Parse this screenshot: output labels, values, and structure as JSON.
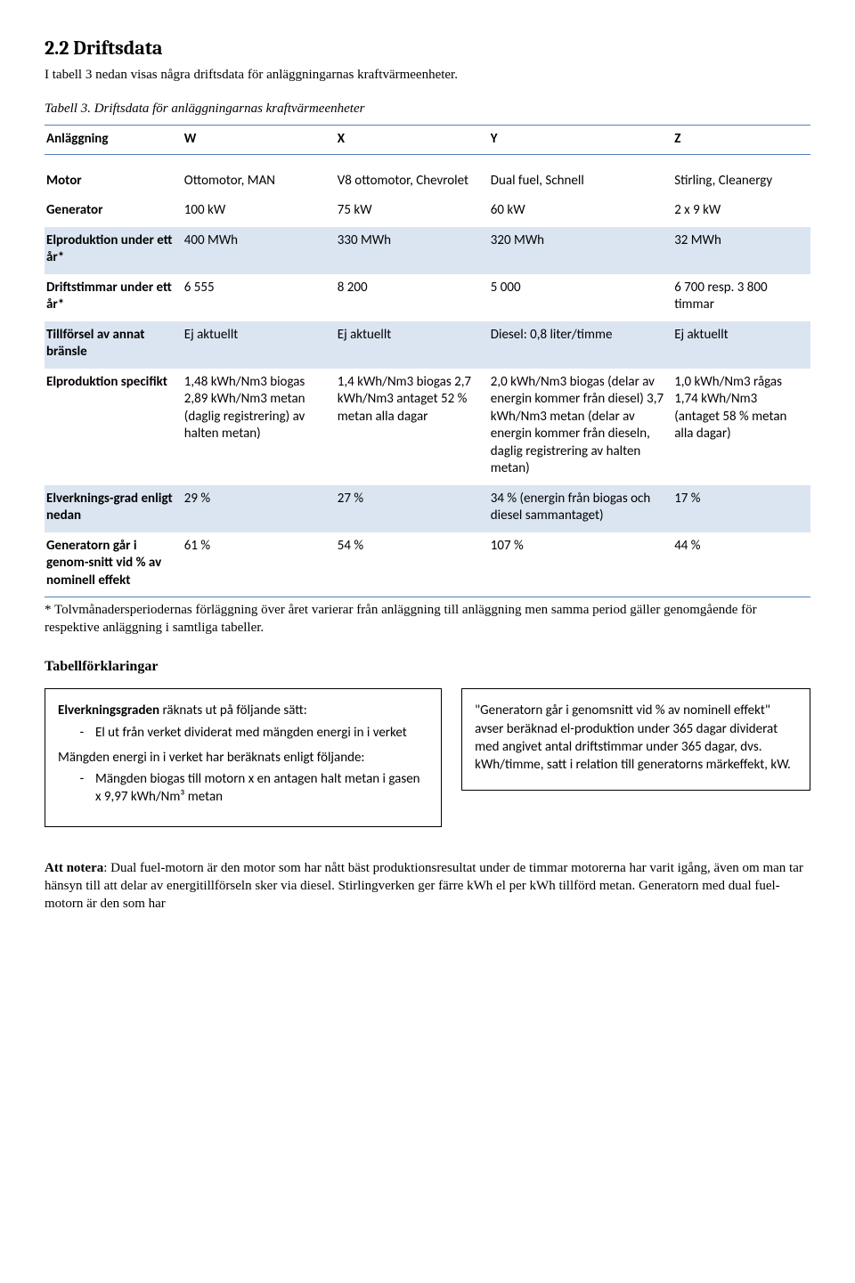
{
  "heading": "2.2  Driftsdata",
  "intro": "I tabell 3 nedan visas några driftsdata för anläggningarnas kraftvärmeenheter.",
  "caption": "Tabell 3. Driftsdata för anläggningarnas kraftvärmeenheter",
  "columns": [
    "Anläggning",
    "W",
    "X",
    "Y",
    "Z"
  ],
  "rows": [
    {
      "shade": false,
      "label": "Motor",
      "cells": [
        "Ottomotor, MAN",
        "V8 ottomotor, Chevrolet",
        "Dual fuel, Schnell",
        "Stirling, Cleanergy"
      ]
    },
    {
      "shade": false,
      "label": "Generator",
      "cells": [
        "100 kW",
        "75 kW",
        "60 kW",
        "2 x 9 kW"
      ]
    },
    {
      "shade": true,
      "label": "Elproduktion under ett år*",
      "cells": [
        "400 MWh",
        "330 MWh",
        "320 MWh",
        "32 MWh"
      ]
    },
    {
      "shade": false,
      "label": "Driftstimmar under ett år*",
      "cells": [
        "6 555",
        " 8 200",
        " 5 000",
        " 6 700 resp. 3 800 timmar"
      ]
    },
    {
      "shade": true,
      "label": "Tillförsel av annat bränsle",
      "cells": [
        "Ej aktuellt",
        "Ej aktuellt",
        "Diesel: 0,8 liter/timme",
        "Ej aktuellt"
      ]
    },
    {
      "shade": false,
      "label": "Elproduktion specifikt",
      "cells": [
        "1,48 kWh/Nm3 biogas\n2,89 kWh/Nm3 metan (daglig registrering) av halten metan)",
        " 1,4 kWh/Nm3 biogas\n 2,7 kWh/Nm3 antaget 52 % metan alla dagar",
        " 2,0 kWh/Nm3 biogas (delar av energin kommer från diesel)\n 3,7 kWh/Nm3 metan (delar av energin kommer från dieseln, daglig registrering av halten metan)",
        " 1,0 kWh/Nm3 rågas\n 1,74 kWh/Nm3 (antaget 58 % metan alla dagar)"
      ]
    },
    {
      "shade": true,
      "label": "Elverknings-grad enligt nedan",
      "cells": [
        "29 %",
        "27 %",
        "34 % (energin från biogas och diesel sammantaget)",
        "17 %"
      ]
    },
    {
      "shade": false,
      "label": "Generatorn går i genom-snitt vid % av nominell effekt",
      "cells": [
        "61 %",
        "54 %",
        "107 %",
        "44 %"
      ]
    }
  ],
  "footnote": "* Tolvmånadersperiodernas förläggning över året varierar från anläggning till anläggning men samma period gäller genomgående för respektive anläggning i samtliga tabeller.",
  "expl_heading": "Tabellförklaringar",
  "expl_left": {
    "lead_strong": "Elverkningsgraden",
    "lead_rest": " räknats ut på följande sätt:",
    "b1": "El ut från verket dividerat med mängden energi in i verket",
    "mid": "Mängden energi in i verket har beräknats enligt följande:",
    "b2": "Mängden biogas till motorn x en antagen halt metan i gasen x 9,97 kWh/Nm³ metan"
  },
  "expl_right": "\"Generatorn går i genomsnitt vid % av nominell effekt\" avser beräknad el-produktion under 365 dagar dividerat med angivet antal driftstimmar under 365 dagar, dvs. kWh/timme, satt i relation till generatorns märkeffekt, kW.",
  "note_strong": "Att notera",
  "note_rest": ": Dual fuel-motorn är den motor som har nått bäst produktionsresultat under de timmar motorerna har varit igång, även om man tar hänsyn till att delar av energitillförseln sker via diesel. Stirlingverken ger färre kWh el per kWh tillförd metan. Generatorn med dual fuel-motorn är den som har"
}
